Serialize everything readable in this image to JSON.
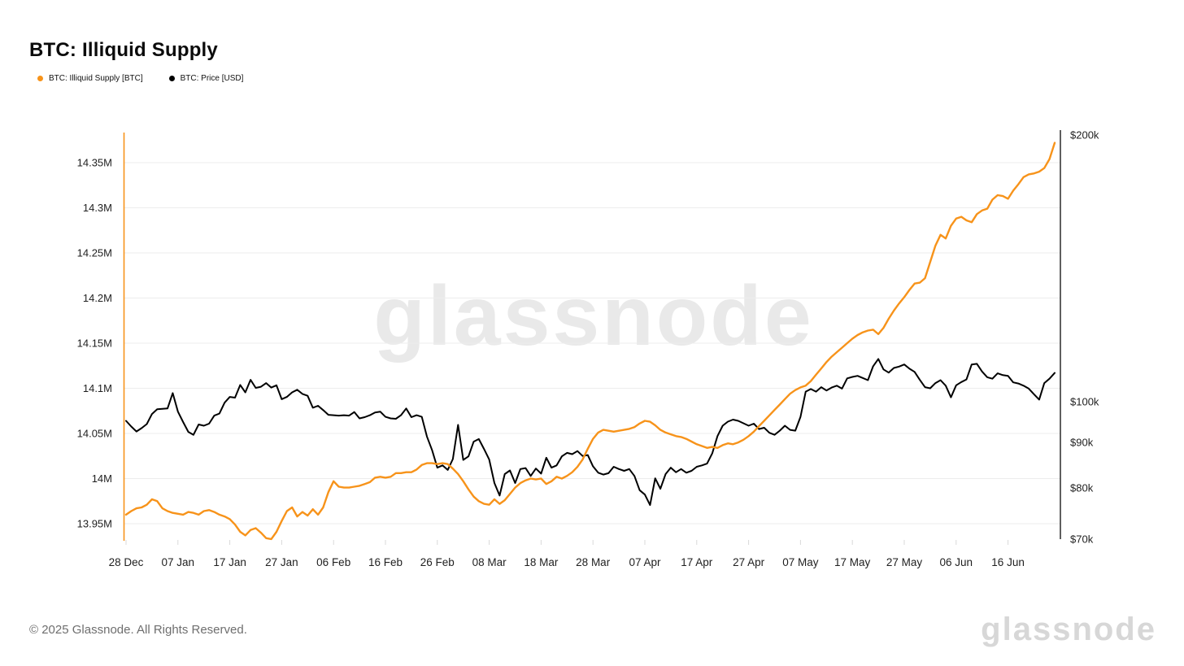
{
  "page": {
    "title": "BTC: Illiquid Supply"
  },
  "legend": {
    "items": [
      {
        "label": "BTC: Illiquid Supply [BTC]",
        "color": "#f7931a"
      },
      {
        "label": "BTC: Price [USD]",
        "color": "#000000"
      }
    ]
  },
  "watermarks": {
    "center": "glassnode",
    "corner": "glassnode"
  },
  "footer": {
    "copyright": "© 2025 Glassnode. All Rights Reserved."
  },
  "colors": {
    "accent_orange": "#f7931a",
    "price_black": "#000000",
    "gridline": "#ededed",
    "tick": "#d9d9d9",
    "axis_text": "#1f1f1f"
  },
  "chart_data": {
    "type": "line",
    "title": "BTC: Illiquid Supply",
    "grid": "horizontal-only",
    "legend_position": "top-left",
    "x": {
      "tick_labels": [
        "28 Dec",
        "07 Jan",
        "17 Jan",
        "27 Jan",
        "06 Feb",
        "16 Feb",
        "26 Feb",
        "08 Mar",
        "18 Mar",
        "28 Mar",
        "07 Apr",
        "17 Apr",
        "27 Apr",
        "07 May",
        "17 May",
        "27 May",
        "06 Jun",
        "16 Jun"
      ],
      "tick_day_indices": [
        0,
        10,
        20,
        30,
        40,
        50,
        60,
        70,
        80,
        90,
        100,
        110,
        120,
        130,
        140,
        150,
        160,
        170
      ],
      "days_total": 180
    },
    "y_left": {
      "name": "BTC: Illiquid Supply [BTC]",
      "unit": "M BTC",
      "scale": "linear",
      "range": [
        13.93,
        14.39
      ],
      "ticks": [
        {
          "label": "14.35M",
          "value": 14.35
        },
        {
          "label": "14.3M",
          "value": 14.3
        },
        {
          "label": "14.25M",
          "value": 14.25
        },
        {
          "label": "14.2M",
          "value": 14.2
        },
        {
          "label": "14.15M",
          "value": 14.15
        },
        {
          "label": "14.1M",
          "value": 14.1
        },
        {
          "label": "14.05M",
          "value": 14.05
        },
        {
          "label": "14M",
          "value": 14.0
        },
        {
          "label": "13.95M",
          "value": 13.95
        }
      ]
    },
    "y_right": {
      "name": "BTC: Price [USD]",
      "unit": "USD (thousands)",
      "scale": "log",
      "range_k": [
        70,
        200
      ],
      "ticks": [
        {
          "label": "$200k",
          "value": 200
        },
        {
          "label": "$100k",
          "value": 100
        },
        {
          "label": "$90k",
          "value": 90
        },
        {
          "label": "$80k",
          "value": 80
        },
        {
          "label": "$70k",
          "value": 70
        }
      ]
    },
    "series": [
      {
        "name": "BTC: Illiquid Supply [BTC]",
        "color": "#f7931a",
        "axis": "left",
        "values": [
          13.96,
          13.964,
          13.967,
          13.968,
          13.971,
          13.977,
          13.975,
          13.967,
          13.964,
          13.962,
          13.961,
          13.96,
          13.963,
          13.962,
          13.96,
          13.964,
          13.965,
          13.963,
          13.96,
          13.958,
          13.955,
          13.949,
          13.941,
          13.937,
          13.943,
          13.945,
          13.94,
          13.934,
          13.933,
          13.941,
          13.953,
          13.964,
          13.968,
          13.958,
          13.963,
          13.959,
          13.966,
          13.96,
          13.968,
          13.985,
          13.997,
          13.991,
          13.99,
          13.99,
          13.991,
          13.992,
          13.994,
          13.996,
          14.001,
          14.002,
          14.001,
          14.002,
          14.006,
          14.006,
          14.007,
          14.007,
          14.01,
          14.015,
          14.017,
          14.017,
          14.016,
          14.017,
          14.016,
          14.011,
          14.005,
          13.997,
          13.988,
          13.98,
          13.975,
          13.972,
          13.971,
          13.977,
          13.972,
          13.976,
          13.983,
          13.99,
          13.995,
          13.998,
          14.0,
          13.999,
          14.0,
          13.994,
          13.997,
          14.002,
          14.0,
          14.003,
          14.007,
          14.013,
          14.021,
          14.033,
          14.044,
          14.051,
          14.054,
          14.053,
          14.052,
          14.053,
          14.054,
          14.055,
          14.057,
          14.061,
          14.064,
          14.063,
          14.059,
          14.054,
          14.051,
          14.049,
          14.047,
          14.046,
          14.044,
          14.041,
          14.038,
          14.036,
          14.034,
          14.035,
          14.034,
          14.037,
          14.039,
          14.038,
          14.04,
          14.043,
          14.047,
          14.052,
          14.058,
          14.064,
          14.07,
          14.076,
          14.082,
          14.088,
          14.094,
          14.098,
          14.101,
          14.103,
          14.108,
          14.115,
          14.122,
          14.129,
          14.135,
          14.14,
          14.145,
          14.15,
          14.155,
          14.159,
          14.162,
          14.164,
          14.165,
          14.16,
          14.167,
          14.177,
          14.186,
          14.194,
          14.201,
          14.209,
          14.216,
          14.217,
          14.222,
          14.24,
          14.258,
          14.27,
          14.266,
          14.28,
          14.288,
          14.29,
          14.286,
          14.284,
          14.293,
          14.297,
          14.299,
          14.309,
          14.314,
          14.313,
          14.31,
          14.319,
          14.326,
          14.334,
          14.337,
          14.338,
          14.34,
          14.344,
          14.354,
          14.372
        ]
      },
      {
        "name": "BTC: Price [USD]",
        "color": "#000000",
        "axis": "right",
        "values": [
          95.2,
          93.8,
          92.6,
          93.4,
          94.4,
          96.9,
          98.1,
          98.2,
          98.3,
          102.3,
          97.5,
          94.9,
          92.5,
          91.8,
          94.3,
          94.0,
          94.5,
          96.5,
          97.0,
          99.8,
          101.3,
          101.1,
          104.5,
          102.5,
          105.9,
          103.7,
          104.0,
          105.0,
          103.8,
          104.4,
          100.7,
          101.3,
          102.5,
          103.2,
          102.1,
          101.6,
          98.5,
          99.0,
          97.9,
          96.7,
          96.6,
          96.5,
          96.6,
          96.5,
          97.4,
          95.8,
          96.1,
          96.6,
          97.3,
          97.5,
          96.2,
          95.8,
          95.7,
          96.6,
          98.3,
          96.1,
          96.6,
          96.2,
          91.4,
          88.2,
          84.3,
          84.8,
          83.8,
          86.2,
          94.2,
          86.0,
          86.8,
          90.2,
          90.8,
          88.5,
          86.1,
          81.0,
          78.4,
          82.9,
          83.7,
          81.0,
          84.0,
          84.2,
          82.5,
          84.1,
          83.0,
          86.5,
          84.3,
          84.8,
          86.8,
          87.6,
          87.3,
          88.0,
          86.9,
          87.1,
          84.6,
          83.2,
          82.8,
          83.1,
          84.5,
          84.0,
          83.6,
          84.0,
          82.5,
          79.5,
          78.6,
          76.5,
          82.0,
          79.8,
          82.9,
          84.3,
          83.3,
          84.0,
          83.2,
          83.6,
          84.5,
          84.8,
          85.2,
          87.5,
          91.5,
          94.0,
          95.0,
          95.5,
          95.2,
          94.6,
          94.0,
          94.5,
          93.2,
          93.5,
          92.3,
          91.8,
          92.8,
          94.0,
          93.0,
          92.8,
          96.2,
          102.7,
          103.4,
          102.7,
          103.9,
          103.0,
          103.8,
          104.3,
          103.5,
          106.3,
          106.7,
          107.0,
          106.4,
          105.8,
          109.7,
          111.8,
          108.8,
          107.9,
          109.2,
          109.6,
          110.2,
          109.0,
          108.1,
          105.9,
          103.9,
          103.6,
          105.0,
          105.8,
          104.3,
          101.2,
          104.4,
          105.3,
          106.0,
          110.2,
          110.4,
          108.2,
          106.6,
          106.2,
          107.7,
          107.2,
          107.0,
          105.2,
          104.9,
          104.3,
          103.5,
          102.0,
          100.6,
          105.0,
          106.2,
          107.8
        ]
      }
    ]
  }
}
